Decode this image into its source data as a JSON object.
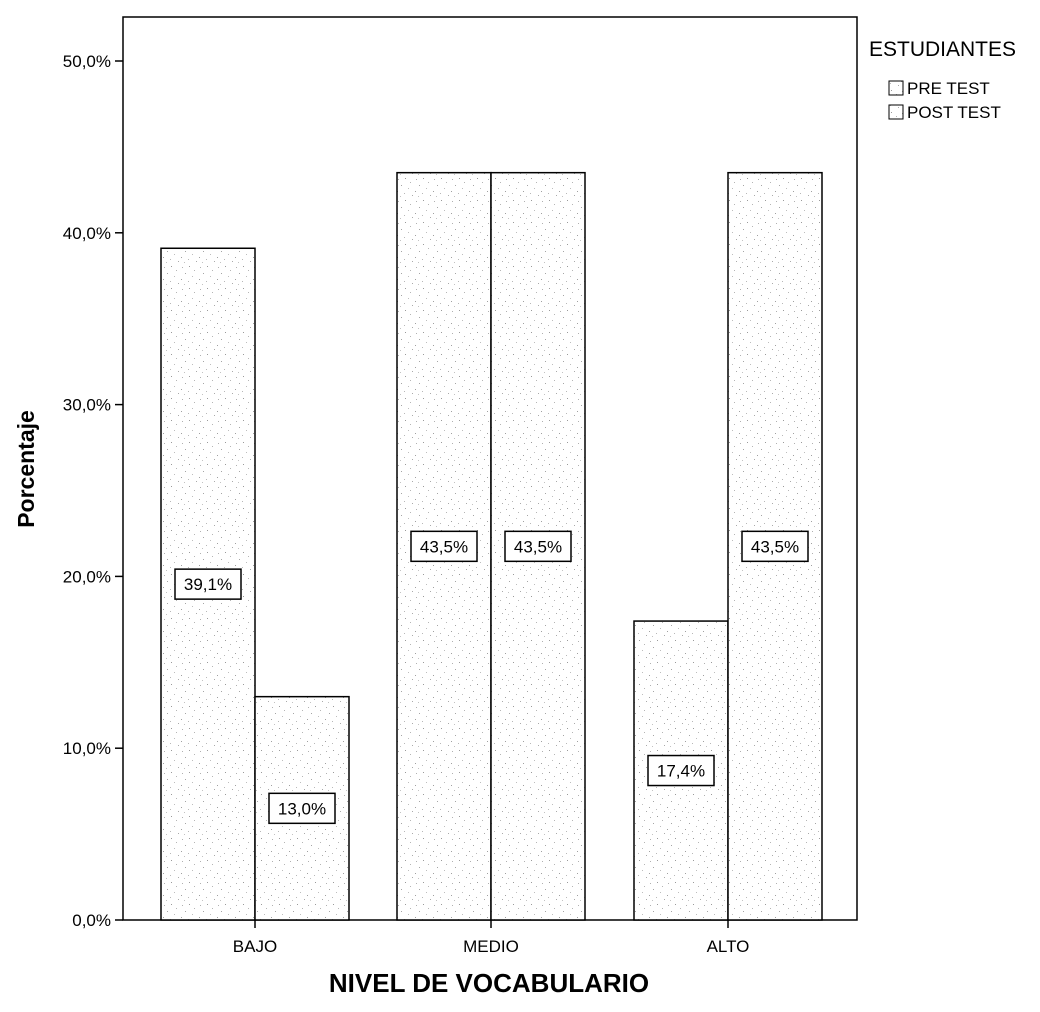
{
  "chart_data": {
    "type": "bar",
    "title": "",
    "xlabel": "NIVEL DE VOCABULARIO",
    "ylabel": "Porcentaje",
    "categories": [
      "BAJO",
      "MEDIO",
      "ALTO"
    ],
    "ylim": [
      0,
      50
    ],
    "yticks": [
      0,
      10,
      20,
      30,
      40,
      50
    ],
    "ytick_labels": [
      "0,0%",
      "10,0%",
      "20,0%",
      "30,0%",
      "40,0%",
      "50,0%"
    ],
    "grid": false,
    "legend": {
      "title": "ESTUDIANTES",
      "position": "top-right",
      "entries": [
        "PRE TEST",
        "POST TEST"
      ]
    },
    "series": [
      {
        "name": "PRE TEST",
        "values": [
          39.1,
          43.5,
          17.4
        ],
        "labels": [
          "39,1%",
          "43,5%",
          "17,4%"
        ]
      },
      {
        "name": "POST TEST",
        "values": [
          13.0,
          43.5,
          43.5
        ],
        "labels": [
          "13,0%",
          "43,5%",
          "43,5%"
        ]
      }
    ]
  }
}
